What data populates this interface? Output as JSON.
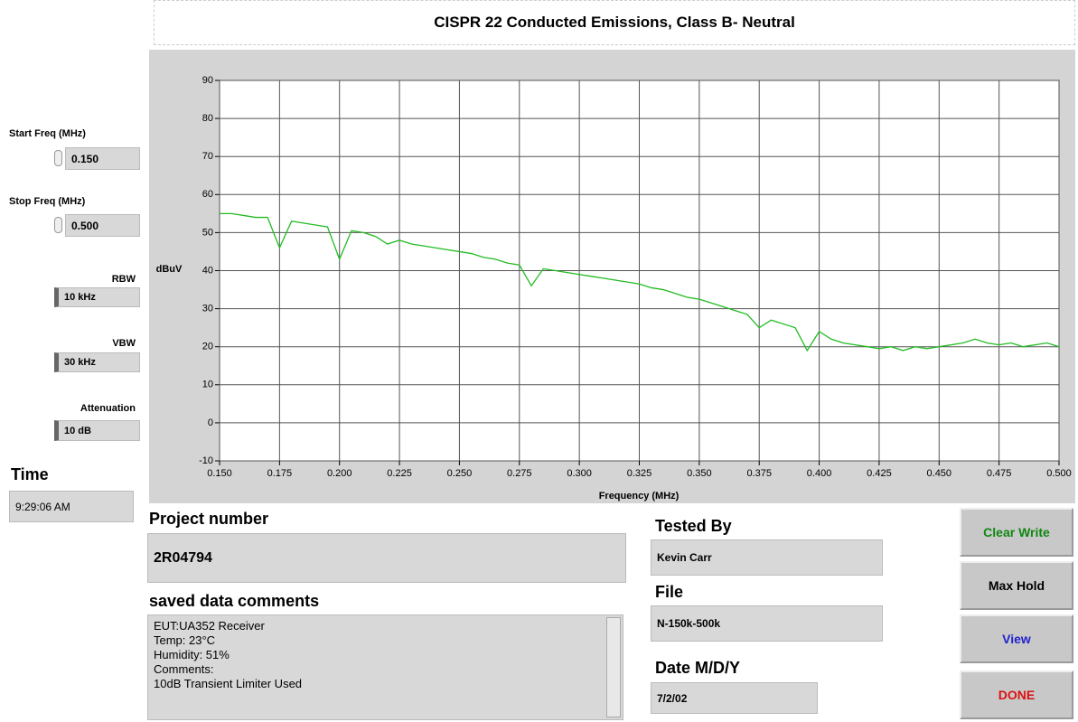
{
  "chart_data": {
    "type": "line",
    "title": "CISPR 22 Conducted Emissions, Class B- Neutral",
    "x_label": "Frequency (MHz)",
    "y_label": "dBuV",
    "color": "#22bb22",
    "grid": true,
    "xlim": [
      0.15,
      0.5
    ],
    "ylim": [
      -10,
      90
    ],
    "xticks": [
      {
        "value": 0.15,
        "label": "0.150"
      },
      {
        "value": 0.175,
        "label": "0.175"
      },
      {
        "value": 0.2,
        "label": "0.200"
      },
      {
        "value": 0.225,
        "label": "0.225"
      },
      {
        "value": 0.25,
        "label": "0.250"
      },
      {
        "value": 0.275,
        "label": "0.275"
      },
      {
        "value": 0.3,
        "label": "0.300"
      },
      {
        "value": 0.325,
        "label": "0.325"
      },
      {
        "value": 0.35,
        "label": "0.350"
      },
      {
        "value": 0.375,
        "label": "0.375"
      },
      {
        "value": 0.4,
        "label": "0.400"
      },
      {
        "value": 0.425,
        "label": "0.425"
      },
      {
        "value": 0.45,
        "label": "0.450"
      },
      {
        "value": 0.475,
        "label": "0.475"
      },
      {
        "value": 0.5,
        "label": "0.500"
      }
    ],
    "yticks": [
      -10,
      0,
      10,
      20,
      30,
      40,
      50,
      60,
      70,
      80,
      90
    ],
    "x": [
      0.15,
      0.155,
      0.16,
      0.165,
      0.17,
      0.175,
      0.18,
      0.185,
      0.19,
      0.195,
      0.2,
      0.205,
      0.21,
      0.215,
      0.22,
      0.225,
      0.23,
      0.235,
      0.24,
      0.245,
      0.25,
      0.255,
      0.26,
      0.265,
      0.27,
      0.275,
      0.28,
      0.285,
      0.29,
      0.295,
      0.3,
      0.305,
      0.31,
      0.315,
      0.32,
      0.325,
      0.33,
      0.335,
      0.34,
      0.345,
      0.35,
      0.355,
      0.36,
      0.365,
      0.37,
      0.375,
      0.38,
      0.385,
      0.39,
      0.395,
      0.4,
      0.405,
      0.41,
      0.415,
      0.42,
      0.425,
      0.43,
      0.435,
      0.44,
      0.445,
      0.45,
      0.455,
      0.46,
      0.465,
      0.47,
      0.475,
      0.48,
      0.485,
      0.49,
      0.495,
      0.5
    ],
    "values": [
      55,
      55,
      54.5,
      54,
      54,
      46,
      53,
      52.5,
      52,
      51.5,
      43,
      50.5,
      50,
      49,
      47,
      48,
      47,
      46.5,
      46,
      45.5,
      45,
      44.5,
      43.5,
      43,
      42,
      41.5,
      36,
      40.5,
      40,
      39.5,
      39,
      38.5,
      38,
      37.5,
      37,
      36.5,
      35.5,
      35,
      34,
      33,
      32.5,
      31.5,
      30.5,
      29.5,
      28.5,
      25,
      27,
      26,
      25,
      19,
      24,
      22,
      21,
      20.5,
      20,
      19.5,
      20,
      19,
      20,
      19.5,
      20,
      20.5,
      21,
      22,
      21,
      20.5,
      21,
      20,
      20.5,
      21,
      20
    ]
  },
  "controls": [
    {
      "label": "Start Freq (MHz)",
      "value": "0.150"
    },
    {
      "label": "Stop Freq (MHz)",
      "value": "0.500"
    },
    {
      "label": "RBW",
      "value": "10 kHz"
    },
    {
      "label": "VBW",
      "value": "30 kHz"
    },
    {
      "label": "Attenuation",
      "value": "10 dB"
    }
  ],
  "time": {
    "label": "Time",
    "value": "9:29:06 AM"
  },
  "project": {
    "label": "Project number",
    "value": "2R04794"
  },
  "comments": {
    "label": "saved data comments",
    "lines": [
      "EUT:UA352 Receiver",
      "Temp: 23°C",
      "Humidity: 51%",
      "Comments:",
      "10dB Transient Limiter Used"
    ]
  },
  "tested_by": {
    "label": "Tested By",
    "value": "Kevin Carr"
  },
  "file": {
    "label": "File",
    "value": "N-150k-500k"
  },
  "date": {
    "label": "Date M/D/Y",
    "value": "7/2/02"
  },
  "buttons": [
    "Clear Write",
    "Max Hold",
    "View",
    "DONE"
  ]
}
